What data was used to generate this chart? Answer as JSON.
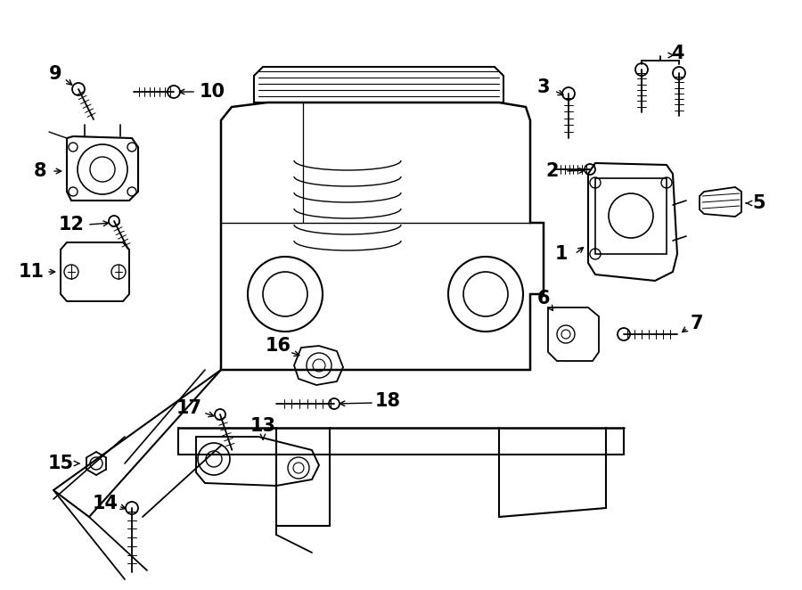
{
  "bg_color": "#ffffff",
  "line_color": "#000000",
  "fig_width": 9.0,
  "fig_height": 6.62,
  "dpi": 100,
  "label_fontsize": 15,
  "label_fontweight": "bold"
}
